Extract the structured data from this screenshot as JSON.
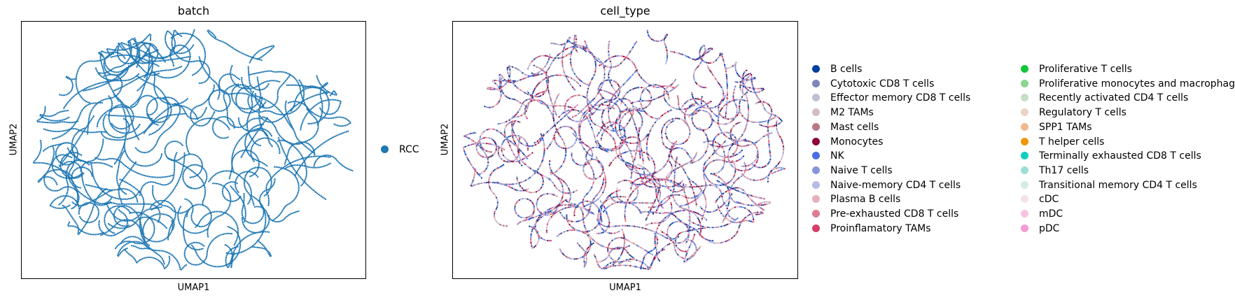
{
  "chart_data": [
    {
      "type": "scatter",
      "title": "batch",
      "xlabel": "UMAP1",
      "ylabel": "UMAP2",
      "grid": false,
      "ticks": false,
      "legend_placement": "right",
      "legend": [
        {
          "label": "RCC",
          "color": "#1f77b4"
        }
      ],
      "point_color": "#1f77b4"
    },
    {
      "type": "scatter",
      "title": "cell_type",
      "xlabel": "UMAP1",
      "ylabel": "UMAP2",
      "grid": false,
      "ticks": false,
      "legend_placement": "right",
      "legend": [
        {
          "label": "B cells",
          "color": "#023fa5"
        },
        {
          "label": "Cytotoxic CD8 T cells",
          "color": "#7d87b9"
        },
        {
          "label": "Effector memory CD8 T cells",
          "color": "#bec1d4"
        },
        {
          "label": "M2 TAMs",
          "color": "#d6bcc0"
        },
        {
          "label": "Mast cells",
          "color": "#bb7784"
        },
        {
          "label": "Monocytes",
          "color": "#8e063b"
        },
        {
          "label": "NK",
          "color": "#4a6fe3"
        },
        {
          "label": "Naive T cells",
          "color": "#8595e1"
        },
        {
          "label": "Naive-memory CD4 T cells",
          "color": "#b5bbe3"
        },
        {
          "label": "Plasma B cells",
          "color": "#e6afb9"
        },
        {
          "label": "Pre-exhausted CD8 T cells",
          "color": "#e07b91"
        },
        {
          "label": "Proinflamatory TAMs",
          "color": "#d33f6a"
        },
        {
          "label": "Proliferative T cells",
          "color": "#11c638"
        },
        {
          "label": "Proliferative monocytes and macrophages",
          "color": "#8dd593"
        },
        {
          "label": "Recently activated CD4 T cells",
          "color": "#c6dec7"
        },
        {
          "label": "Regulatory T cells",
          "color": "#ead3c6"
        },
        {
          "label": "SPP1 TAMs",
          "color": "#f0b98d"
        },
        {
          "label": "T helper cells",
          "color": "#ef9708"
        },
        {
          "label": "Terminally exhausted CD8 T cells",
          "color": "#0fcfc0"
        },
        {
          "label": "Th17 cells",
          "color": "#9cded6"
        },
        {
          "label": "Transitional memory CD4 T cells",
          "color": "#d5eae7"
        },
        {
          "label": "cDC",
          "color": "#f3e1eb"
        },
        {
          "label": "mDC",
          "color": "#f6c4e1"
        },
        {
          "label": "pDC",
          "color": "#f79cd4"
        }
      ]
    }
  ]
}
